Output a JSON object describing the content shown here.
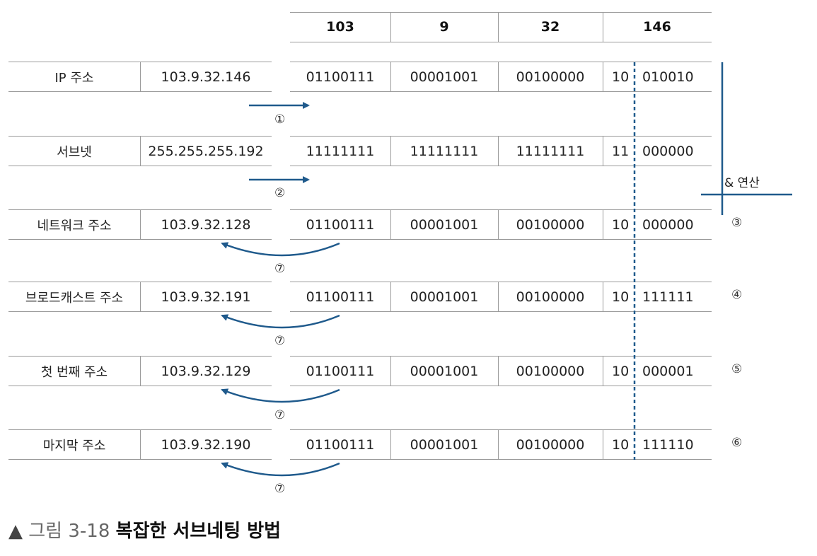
{
  "columns": [
    "103",
    "9",
    "32",
    "146"
  ],
  "rows": [
    {
      "label": "IP 주소",
      "value": "103.9.32.146",
      "bits": [
        "01100111",
        "00001001",
        "00100000"
      ],
      "last_prefix": "10",
      "last_suffix": "010010",
      "marker": ""
    },
    {
      "label": "서브넷",
      "value": "255.255.255.192",
      "bits": [
        "11111111",
        "11111111",
        "11111111"
      ],
      "last_prefix": "11",
      "last_suffix": "000000",
      "marker": ""
    },
    {
      "label": "네트워크 주소",
      "value": "103.9.32.128",
      "bits": [
        "01100111",
        "00001001",
        "00100000"
      ],
      "last_prefix": "10",
      "last_suffix": "000000",
      "marker": "③"
    },
    {
      "label": "브로드캐스트 주소",
      "value": "103.9.32.191",
      "bits": [
        "01100111",
        "00001001",
        "00100000"
      ],
      "last_prefix": "10",
      "last_suffix": "111111",
      "marker": "④"
    },
    {
      "label": "첫 번째 주소",
      "value": "103.9.32.129",
      "bits": [
        "01100111",
        "00001001",
        "00100000"
      ],
      "last_prefix": "10",
      "last_suffix": "000001",
      "marker": "⑤"
    },
    {
      "label": "마지막 주소",
      "value": "103.9.32.190",
      "bits": [
        "01100111",
        "00001001",
        "00100000"
      ],
      "last_prefix": "10",
      "last_suffix": "111110",
      "marker": "⑥"
    }
  ],
  "step_markers": [
    "①",
    "②",
    "⑦",
    "⑦",
    "⑦",
    "⑦"
  ],
  "and_label": "& 연산",
  "caption": {
    "prefix": "▲",
    "figure": "그림 3-18",
    "title": "복잡한 서브네팅 방법"
  },
  "colors": {
    "arrow": "#1f5a8c",
    "rule": "#9a9a9a",
    "dashed": "#1f5a8c"
  }
}
